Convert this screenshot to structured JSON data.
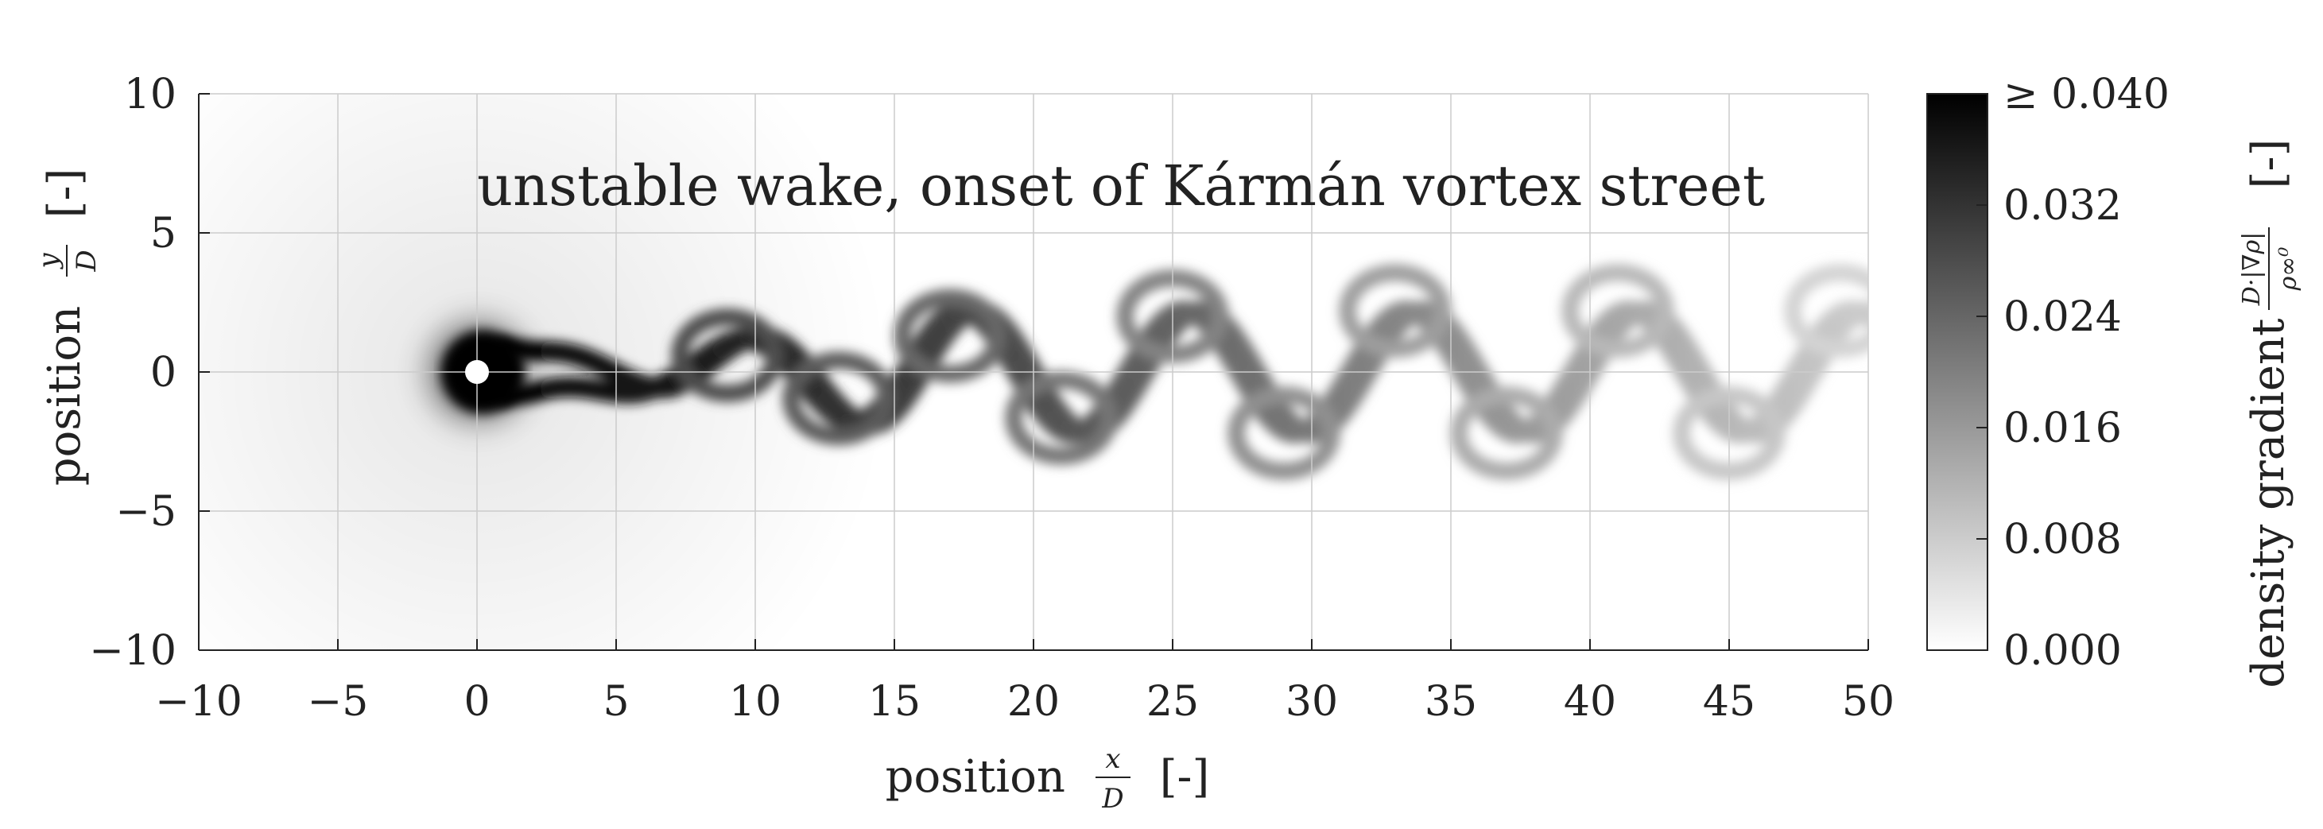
{
  "chart_data": {
    "type": "heatmap",
    "title": "",
    "annotation": "unstable wake, onset of Kármán vortex street",
    "xlabel": {
      "text": "position",
      "num": "x",
      "den": "D",
      "unit": "[-]"
    },
    "ylabel": {
      "text": "position",
      "num": "y",
      "den": "D",
      "unit": "[-]"
    },
    "xlim": [
      -10,
      50
    ],
    "ylim": [
      -10,
      10
    ],
    "xticks": [
      -10,
      -5,
      0,
      5,
      10,
      15,
      20,
      25,
      30,
      35,
      40,
      45,
      50
    ],
    "xtick_labels": [
      "−10",
      "−5",
      "0",
      "5",
      "10",
      "15",
      "20",
      "25",
      "30",
      "35",
      "40",
      "45",
      "50"
    ],
    "yticks": [
      10,
      5,
      0,
      -5,
      -10
    ],
    "ytick_labels": [
      "10",
      "5",
      "0",
      "−5",
      "−10"
    ],
    "grid": true,
    "colormap": [
      "#ffffff",
      "#000000"
    ],
    "colorbar": {
      "label": "density gradient",
      "formula_num": "D·|∇ρ|",
      "formula_den": "ρ∞⁰",
      "unit": "[-]",
      "range": [
        0.0,
        0.04
      ],
      "ticks": [
        0.0,
        0.008,
        0.016,
        0.024,
        0.032,
        0.04
      ],
      "tick_labels": [
        "0.000",
        "0.008",
        "0.016",
        "0.024",
        "0.032",
        "≥ 0.040"
      ]
    },
    "cylinder": {
      "x": 0,
      "y": 0,
      "diameter": 1
    },
    "wake": {
      "x_start": 1,
      "x_end": 50,
      "wavelength": 8,
      "amplitude_max": 2.2,
      "intensity_near": 0.04,
      "intensity_far": 0.008
    }
  }
}
